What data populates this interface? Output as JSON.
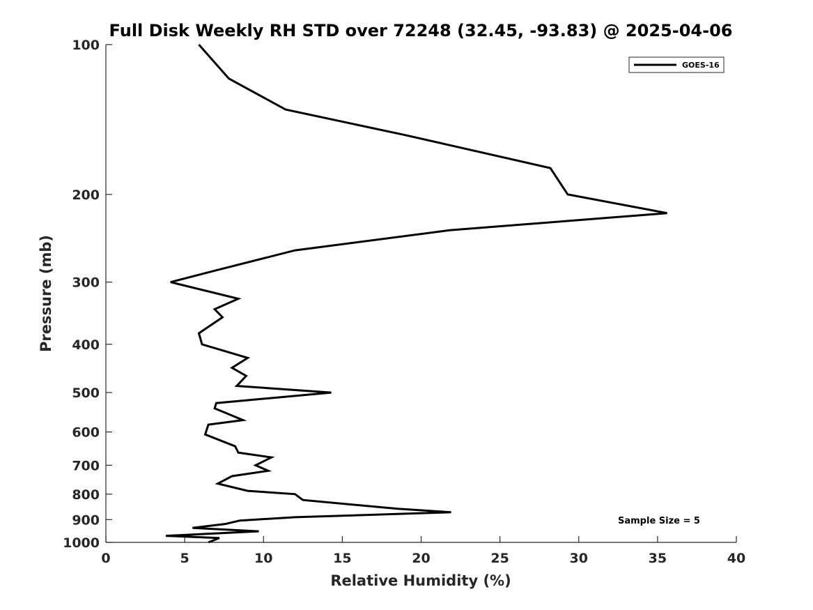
{
  "chart_data": {
    "type": "line",
    "title": "Full Disk Weekly RH STD over 72248 (32.45, -93.83) @ 2025-04-06",
    "xlabel": "Relative Humidity (%)",
    "ylabel": "Pressure (mb)",
    "xlim": [
      0,
      40
    ],
    "ylim": [
      100,
      1000
    ],
    "yscale": "log",
    "y_inverted": true,
    "xticks": [
      0,
      5,
      10,
      15,
      20,
      25,
      30,
      35,
      40
    ],
    "yticks": [
      100,
      200,
      300,
      400,
      500,
      600,
      700,
      800,
      900,
      1000
    ],
    "grid": false,
    "legend_position": "top-right",
    "annotation": "Sample Size = 5",
    "series": [
      {
        "name": "GOES-16",
        "color": "#000000",
        "x": [
          5.9,
          7.8,
          11.4,
          19.0,
          28.2,
          29.3,
          35.6,
          21.8,
          12.0,
          7.2,
          4.1,
          8.4,
          6.9,
          7.4,
          5.9,
          6.1,
          9.0,
          8.0,
          8.9,
          8.3,
          14.3,
          7.0,
          6.9,
          8.7,
          6.5,
          6.3,
          8.2,
          8.4,
          10.5,
          9.5,
          10.3,
          8.0,
          7.1,
          9.0,
          12.0,
          12.5,
          18.5,
          21.9,
          12.0,
          8.5,
          7.6,
          5.5,
          9.7,
          3.8,
          7.2,
          6.5
        ],
        "y": [
          100,
          117,
          135,
          152,
          177,
          200,
          218,
          236,
          259,
          283,
          300,
          324,
          340,
          353,
          380,
          400,
          426,
          446,
          463,
          485,
          500,
          525,
          538,
          568,
          580,
          607,
          641,
          660,
          675,
          700,
          718,
          736,
          762,
          788,
          800,
          822,
          856,
          870,
          890,
          904,
          918,
          935,
          950,
          970,
          980,
          1000
        ]
      }
    ]
  }
}
